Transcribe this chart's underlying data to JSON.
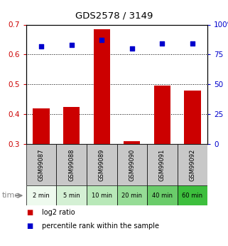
{
  "title": "GDS2578 / 3149",
  "categories": [
    "GSM99087",
    "GSM99088",
    "GSM99089",
    "GSM99090",
    "GSM99091",
    "GSM99092"
  ],
  "time_labels": [
    "2 min",
    "5 min",
    "10 min",
    "20 min",
    "40 min",
    "60 min"
  ],
  "log2_ratio": [
    0.42,
    0.425,
    0.685,
    0.31,
    0.495,
    0.48
  ],
  "percentile_rank": [
    82,
    83,
    87,
    80,
    84,
    84
  ],
  "bar_color": "#cc0000",
  "dot_color": "#0000cc",
  "ylim_left": [
    0.3,
    0.7
  ],
  "ylim_right": [
    0,
    100
  ],
  "yticks_left": [
    0.3,
    0.4,
    0.5,
    0.6,
    0.7
  ],
  "yticks_right": [
    0,
    25,
    50,
    75,
    100
  ],
  "bar_width": 0.55,
  "bar_bottom": 0.3,
  "time_colors": [
    "#eefaee",
    "#d4f0d4",
    "#b8e8b8",
    "#96dc96",
    "#6acc6a",
    "#3dbf3d"
  ],
  "gsm_bg_color": "#c8c8c8",
  "legend_items": [
    "log2 ratio",
    "percentile rank within the sample"
  ],
  "legend_colors": [
    "#cc0000",
    "#0000cc"
  ]
}
